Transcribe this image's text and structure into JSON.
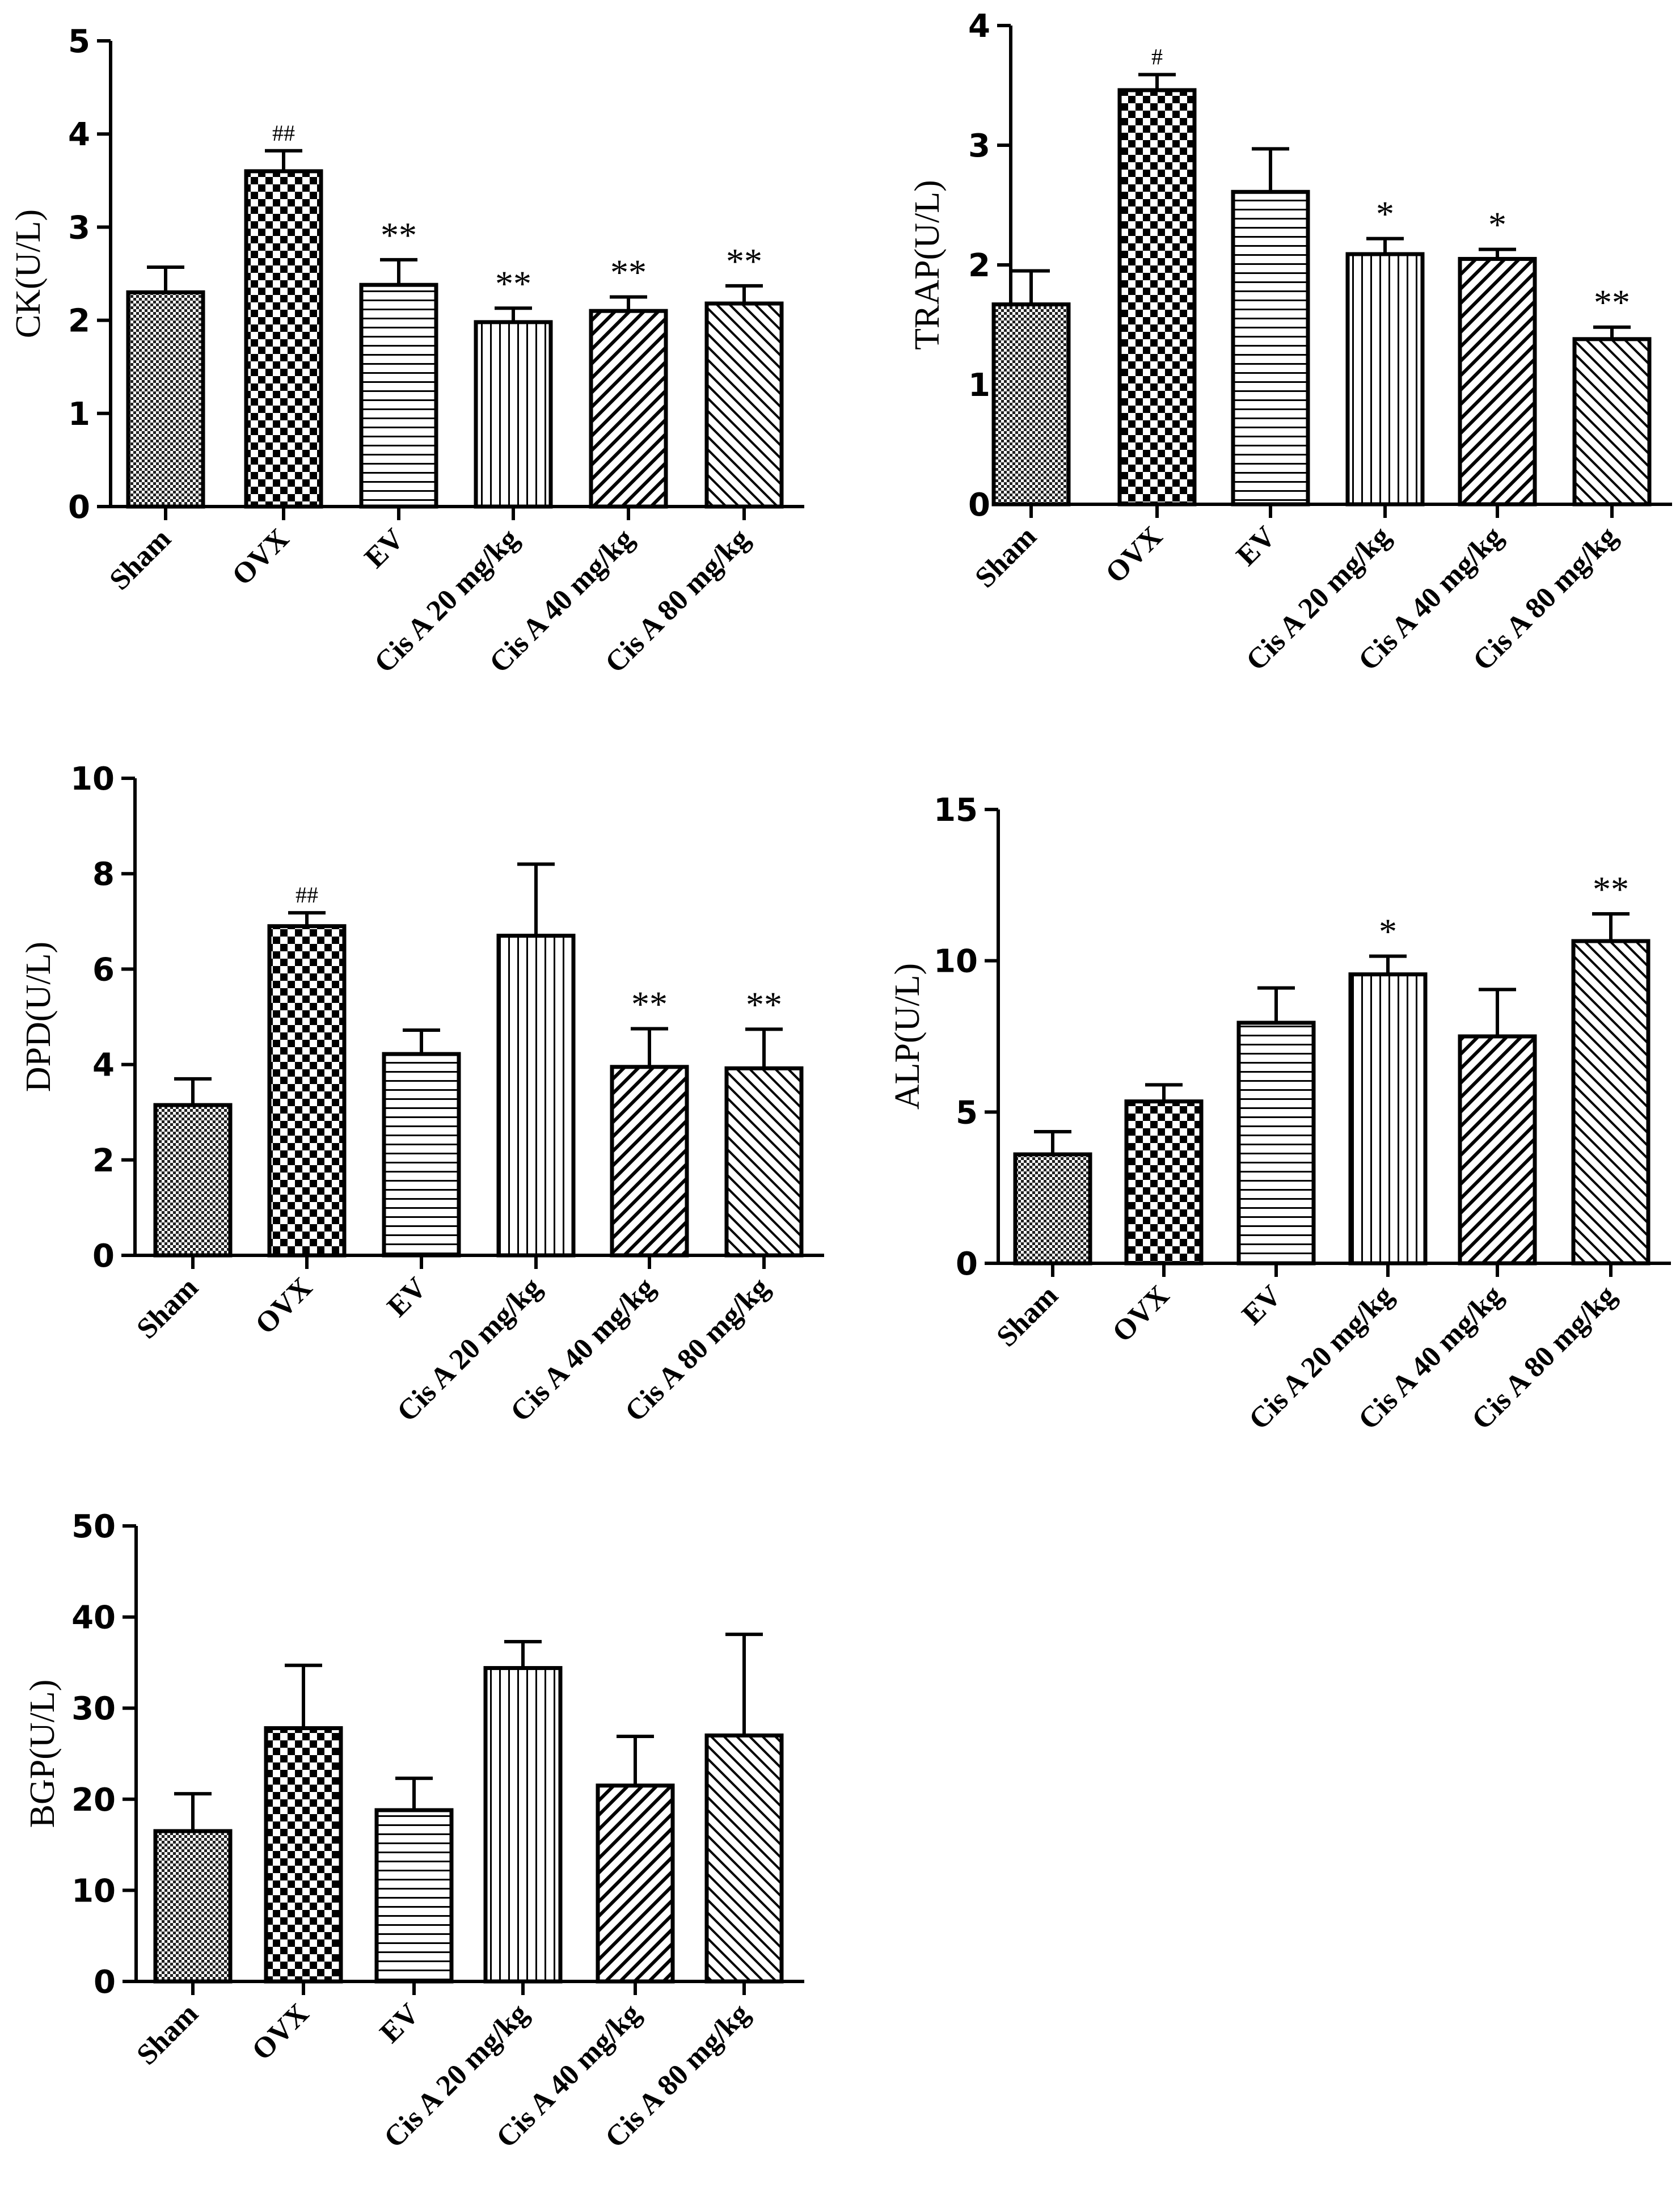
{
  "figure_type": "multi-panel bar chart",
  "chart_data": [
    {
      "type": "bar",
      "ylabel": "CK(U/L)",
      "ylim": [
        0,
        5
      ],
      "ticks": [
        0,
        1,
        2,
        3,
        4,
        5
      ],
      "tick_labels": [
        "0",
        "1",
        "2",
        "3",
        "4",
        "5"
      ],
      "categories": [
        "Sham",
        "OVX",
        "EV",
        "Cis A 20 mg/kg",
        "Cis A 40 mg/kg",
        "Cis A 80 mg/kg"
      ],
      "values": [
        2.3,
        3.6,
        2.38,
        1.98,
        2.1,
        2.18
      ],
      "errors": [
        0.27,
        0.22,
        0.27,
        0.15,
        0.15,
        0.19
      ],
      "annotations": [
        "",
        "##",
        "**",
        "**",
        "**",
        "**"
      ]
    },
    {
      "type": "bar",
      "ylabel": "TRAP(U/L)",
      "ylim": [
        0,
        4
      ],
      "ticks": [
        0,
        1,
        2,
        3,
        4
      ],
      "tick_labels": [
        "0",
        "1",
        "2",
        "3",
        "4"
      ],
      "categories": [
        "Sham",
        "OVX",
        "EV",
        "Cis A 20 mg/kg",
        "Cis A 40 mg/kg",
        "Cis A 80 mg/kg"
      ],
      "values": [
        1.67,
        3.46,
        2.61,
        2.09,
        2.05,
        1.38
      ],
      "errors": [
        0.28,
        0.13,
        0.36,
        0.13,
        0.08,
        0.1
      ],
      "annotations": [
        "",
        "#",
        "",
        "*",
        "*",
        "**"
      ]
    },
    {
      "type": "bar",
      "ylabel": "DPD(U/L)",
      "ylim": [
        0,
        10
      ],
      "ticks": [
        0,
        2,
        4,
        6,
        8,
        10
      ],
      "tick_labels": [
        "0",
        "2",
        "4",
        "6",
        "8",
        "10"
      ],
      "categories": [
        "Sham",
        "OVX",
        "EV",
        "Cis A 20 mg/kg",
        "Cis A 40 mg/kg",
        "Cis A 80 mg/kg"
      ],
      "values": [
        3.15,
        6.9,
        4.22,
        6.7,
        3.95,
        3.92
      ],
      "errors": [
        0.55,
        0.28,
        0.5,
        1.5,
        0.8,
        0.82
      ],
      "annotations": [
        "",
        "##",
        "",
        "",
        "**",
        "**"
      ]
    },
    {
      "type": "bar",
      "ylabel": "ALP(U/L)",
      "ylim": [
        0,
        15
      ],
      "ticks": [
        0,
        5,
        10,
        15
      ],
      "tick_labels": [
        "0",
        "5",
        "10",
        "15"
      ],
      "categories": [
        "Sham",
        "OVX",
        "EV",
        "Cis A 20 mg/kg",
        "Cis A 40 mg/kg",
        "Cis A 80 mg/kg"
      ],
      "values": [
        3.6,
        5.35,
        7.95,
        9.55,
        7.5,
        10.65
      ],
      "errors": [
        0.75,
        0.55,
        1.15,
        0.6,
        1.55,
        0.9
      ],
      "annotations": [
        "",
        "",
        "",
        "*",
        "",
        "**"
      ]
    },
    {
      "type": "bar",
      "ylabel": "BGP(U/L)",
      "ylim": [
        0,
        50
      ],
      "ticks": [
        0,
        10,
        20,
        30,
        40,
        50
      ],
      "tick_labels": [
        "0",
        "10",
        "20",
        "30",
        "40",
        "50"
      ],
      "categories": [
        "Sham",
        "OVX",
        "EV",
        "Cis A 20 mg/kg",
        "Cis A 40 mg/kg",
        "Cis A 80 mg/kg"
      ],
      "values": [
        16.5,
        27.8,
        18.8,
        34.4,
        21.5,
        27.0
      ],
      "errors": [
        4.1,
        6.9,
        3.5,
        2.9,
        5.4,
        11.1
      ],
      "annotations": [
        "",
        "",
        "",
        "",
        "",
        ""
      ]
    }
  ]
}
